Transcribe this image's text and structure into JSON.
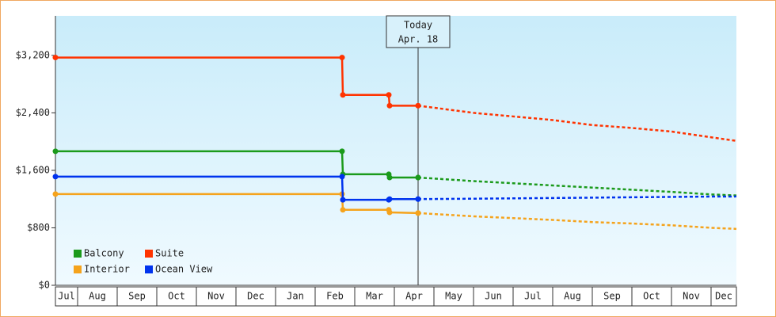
{
  "chart_data": {
    "type": "line",
    "categories": [
      "Jul",
      "Aug",
      "Sep",
      "Oct",
      "Nov",
      "Dec",
      "Jan",
      "Feb",
      "Mar",
      "Apr",
      "May",
      "Jun",
      "Jul",
      "Aug",
      "Sep",
      "Oct",
      "Nov",
      "Dec"
    ],
    "xlim": [
      0.44,
      17.64
    ],
    "ylim": [
      0,
      3750
    ],
    "yticks": [
      {
        "value": 0,
        "label": "$0"
      },
      {
        "value": 800,
        "label": "$800"
      },
      {
        "value": 1600,
        "label": "$1,600"
      },
      {
        "value": 2400,
        "label": "$2,400"
      },
      {
        "value": 3200,
        "label": "$3,200"
      }
    ],
    "annotation": {
      "lines": [
        "Today",
        "Apr. 18"
      ],
      "x": 9.6
    },
    "legend": "bottom-left",
    "series": [
      {
        "name": "Balcony",
        "color": "#1b9a1b",
        "x": [
          0.44,
          7.68,
          7.7,
          8.86,
          8.88,
          9.6
        ],
        "values": [
          1865,
          1865,
          1545,
          1545,
          1500,
          1500
        ],
        "forecast_x": [
          9.6,
          11,
          12,
          13,
          14,
          15,
          16,
          17,
          17.64
        ],
        "forecast_values": [
          1500,
          1450,
          1420,
          1390,
          1360,
          1330,
          1300,
          1265,
          1250
        ]
      },
      {
        "name": "Suite",
        "color": "#ff3300",
        "x": [
          0.44,
          7.68,
          7.7,
          8.86,
          8.88,
          9.6
        ],
        "values": [
          3170,
          3170,
          2650,
          2650,
          2500,
          2500
        ],
        "forecast_x": [
          9.6,
          11,
          12,
          13,
          14,
          15,
          16,
          17,
          17.64
        ],
        "forecast_values": [
          2500,
          2400,
          2350,
          2300,
          2230,
          2190,
          2140,
          2060,
          2010
        ]
      },
      {
        "name": "Interior",
        "color": "#f5a31c",
        "x": [
          0.44,
          7.68,
          7.7,
          8.86,
          8.88,
          9.6
        ],
        "values": [
          1270,
          1270,
          1050,
          1050,
          1015,
          1005
        ],
        "forecast_x": [
          9.6,
          11,
          12,
          13,
          14,
          15,
          16,
          17,
          17.64
        ],
        "forecast_values": [
          1005,
          960,
          935,
          910,
          880,
          860,
          835,
          800,
          785
        ]
      },
      {
        "name": "Ocean View",
        "color": "#0033ee",
        "x": [
          0.44,
          7.68,
          7.7,
          8.86,
          8.88,
          9.6
        ],
        "values": [
          1512,
          1512,
          1190,
          1190,
          1200,
          1200
        ],
        "forecast_x": [
          9.6,
          11,
          12,
          13,
          14,
          15,
          16,
          17,
          17.64
        ],
        "forecast_values": [
          1200,
          1205,
          1210,
          1215,
          1220,
          1225,
          1230,
          1235,
          1236
        ]
      }
    ]
  }
}
